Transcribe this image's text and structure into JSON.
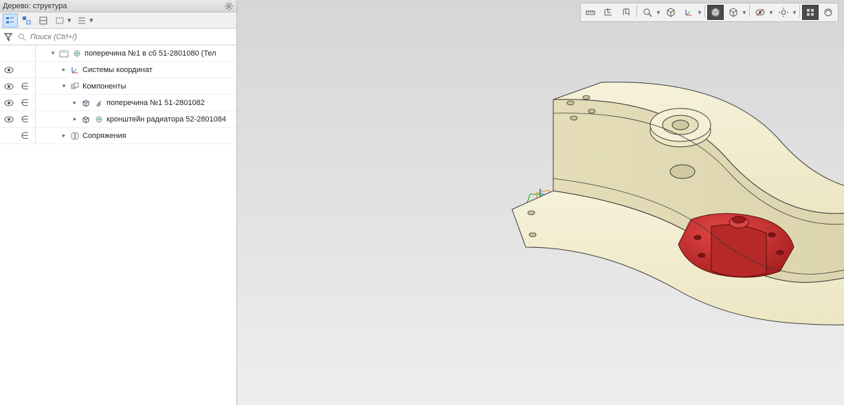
{
  "panel": {
    "title": "Дерево: структура",
    "search_placeholder": "Поиск (Ctrl+/)",
    "toolbar": [
      {
        "name": "tree-mode-1",
        "active": true
      },
      {
        "name": "tree-mode-2",
        "active": false
      },
      {
        "name": "tree-mode-3",
        "active": false
      },
      {
        "name": "tree-mode-4-dd",
        "active": false,
        "dropdown": true
      },
      {
        "name": "tree-mode-5-dd",
        "active": false,
        "dropdown": true
      }
    ]
  },
  "tree": {
    "rows": [
      {
        "indent": 0,
        "eye": false,
        "eps": false,
        "expander": "▾",
        "icons": [
          "asm",
          "plus"
        ],
        "label": "поперечина №1 в сб 51-2801080 (Тел",
        "name": "root-assembly"
      },
      {
        "indent": 1,
        "eye": true,
        "eps": false,
        "expander": "▸",
        "icons": [
          "axes"
        ],
        "label": "Системы координат",
        "name": "coordinate-systems"
      },
      {
        "indent": 1,
        "eye": true,
        "eps": true,
        "expander": "▾",
        "icons": [
          "comp"
        ],
        "label": "Компоненты",
        "name": "components"
      },
      {
        "indent": 2,
        "eye": true,
        "eps": true,
        "expander": "▸",
        "icons": [
          "part",
          "pin"
        ],
        "label": "поперечина №1 51-2801082",
        "name": "part-crossmember"
      },
      {
        "indent": 2,
        "eye": true,
        "eps": true,
        "expander": "▸",
        "icons": [
          "part",
          "plus"
        ],
        "label": "кронштейн радиатора 52-2801084",
        "name": "part-bracket"
      },
      {
        "indent": 1,
        "eye": false,
        "eps": true,
        "expander": "▸",
        "icons": [
          "mate"
        ],
        "label": "Сопряжения",
        "name": "mates"
      }
    ]
  },
  "viewport": {
    "bg_top": "#d6d6d6",
    "bg_bottom": "#eeeeee",
    "part_main_color": "#f2edd2",
    "part_bracket_color": "#c1272d",
    "edge_color": "#3a3a3a",
    "tools": [
      {
        "name": "measure-icon",
        "dd": false
      },
      {
        "name": "dim-h-icon",
        "dd": false
      },
      {
        "name": "dim-v-icon",
        "dd": false
      },
      {
        "sep": true
      },
      {
        "name": "zoom-fit-icon",
        "dd": true
      },
      {
        "name": "orient-icon",
        "dd": false
      },
      {
        "name": "axis-icon",
        "dd": true
      },
      {
        "sep": true
      },
      {
        "name": "cube-solid-icon",
        "dark": true,
        "dd": false
      },
      {
        "name": "cube-wire-icon",
        "dd": true
      },
      {
        "sep": true
      },
      {
        "name": "vis-eye-icon",
        "dd": true
      },
      {
        "name": "vis-sun-icon",
        "dd": true
      },
      {
        "sep": true
      },
      {
        "name": "perf-icon",
        "dark": true,
        "dd": false
      },
      {
        "name": "render-icon",
        "dd": false
      }
    ]
  }
}
